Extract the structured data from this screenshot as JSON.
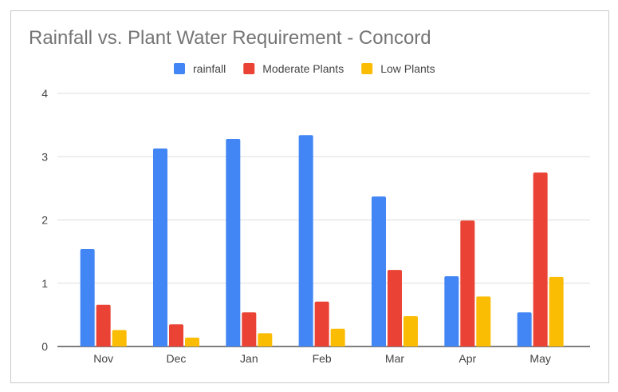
{
  "chart_data": {
    "type": "bar",
    "title": "Rainfall vs. Plant Water Requirement - Concord",
    "categories": [
      "Nov",
      "Dec",
      "Jan",
      "Feb",
      "Mar",
      "Apr",
      "May"
    ],
    "series": [
      {
        "name": "rainfall",
        "color": "#4285f4",
        "values": [
          1.54,
          3.13,
          3.28,
          3.34,
          2.37,
          1.11,
          0.54
        ]
      },
      {
        "name": "Moderate Plants",
        "color": "#ea4335",
        "values": [
          0.66,
          0.35,
          0.54,
          0.71,
          1.21,
          1.99,
          2.75
        ]
      },
      {
        "name": "Low Plants",
        "color": "#fbbc04",
        "values": [
          0.26,
          0.14,
          0.21,
          0.28,
          0.48,
          0.79,
          1.1
        ]
      }
    ],
    "ylim": [
      0,
      4
    ],
    "yticks": [
      "0",
      "1",
      "2",
      "3",
      "4"
    ],
    "grid": true,
    "legend": "top",
    "xlabel": "",
    "ylabel": ""
  }
}
